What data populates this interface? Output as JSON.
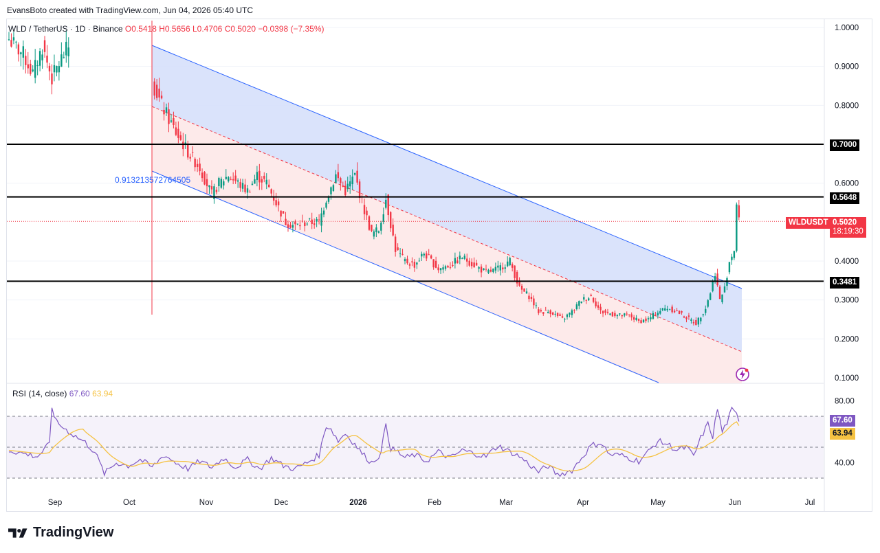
{
  "attribution": "EvansBoto created with TradingView.com, Jun 04, 2026 05:40 UTC",
  "legend": {
    "symbol": "WLD / TetherUS · 1D · Binance",
    "open": "O0.5418",
    "high": "H0.5656",
    "low": "L0.4706",
    "close": "C0.5020",
    "change": "−0.0398 (−7.35%)"
  },
  "fib_label": "0.913213572764505",
  "rsi": {
    "title": "RSI (14, close)",
    "value": "67.60",
    "ma_value": "63.94",
    "levels": {
      "upper": 70,
      "middle": 50,
      "lower": 30
    },
    "ticks": [
      "80.00",
      "40.00"
    ]
  },
  "price_tags": {
    "symbol_tag": "WLDUSDT",
    "last_price": "0.5020",
    "countdown": "18:19:30",
    "levels": [
      "0.7000",
      "0.5648",
      "0.3481"
    ]
  },
  "footer": {
    "brand": "TradingView"
  },
  "colors": {
    "up": "#089981",
    "down": "#f23645",
    "channel_line": "#2962ff",
    "channel_upper_fill": "#d6e0fb",
    "channel_lower_fill": "#fde8e8",
    "rsi_line": "#7e57c2",
    "rsi_ma": "#f5c242"
  },
  "chart_data": {
    "type": "candlestick",
    "symbol": "WLDUSDT",
    "timeframe": "1D",
    "x_ticks": [
      "Sep",
      "Oct",
      "Nov",
      "Dec",
      "2026",
      "Feb",
      "Mar",
      "Apr",
      "May",
      "Jun",
      "Jul"
    ],
    "y_ticks": [
      "1.0000",
      "0.9000",
      "0.8000",
      "0.6000",
      "0.4000",
      "0.3000",
      "0.2000",
      "0.1000"
    ],
    "horizontal_levels": [
      0.7,
      0.5648,
      0.3481
    ],
    "last_price": 0.502,
    "anchors_close": [
      [
        0,
        0.97
      ],
      [
        6,
        0.93
      ],
      [
        10,
        0.88
      ],
      [
        14,
        0.95
      ],
      [
        18,
        0.87
      ],
      [
        22,
        0.92
      ],
      [
        26,
        0.96
      ],
      [
        35,
        0.97
      ],
      [
        40,
        0.9
      ],
      [
        45,
        0.86
      ],
      [
        50,
        0.91
      ],
      [
        55,
        0.83
      ],
      [
        60,
        0.86
      ],
      [
        64,
        0.8
      ],
      [
        70,
        0.73
      ],
      [
        75,
        0.68
      ],
      [
        80,
        0.64
      ],
      [
        85,
        0.57
      ],
      [
        88,
        0.6
      ],
      [
        92,
        0.62
      ],
      [
        96,
        0.6
      ],
      [
        100,
        0.58
      ],
      [
        104,
        0.62
      ],
      [
        108,
        0.6
      ],
      [
        112,
        0.55
      ],
      [
        116,
        0.5
      ],
      [
        120,
        0.49
      ],
      [
        125,
        0.5
      ],
      [
        130,
        0.5
      ],
      [
        133,
        0.56
      ],
      [
        137,
        0.62
      ],
      [
        141,
        0.58
      ],
      [
        145,
        0.62
      ],
      [
        149,
        0.53
      ],
      [
        152,
        0.47
      ],
      [
        155,
        0.48
      ],
      [
        158,
        0.56
      ],
      [
        162,
        0.43
      ],
      [
        166,
        0.4
      ],
      [
        170,
        0.39
      ],
      [
        174,
        0.42
      ],
      [
        180,
        0.38
      ],
      [
        185,
        0.39
      ],
      [
        190,
        0.41
      ],
      [
        195,
        0.39
      ],
      [
        200,
        0.37
      ],
      [
        205,
        0.38
      ],
      [
        210,
        0.4
      ],
      [
        214,
        0.33
      ],
      [
        218,
        0.31
      ],
      [
        222,
        0.27
      ],
      [
        227,
        0.27
      ],
      [
        232,
        0.25
      ],
      [
        236,
        0.27
      ],
      [
        240,
        0.3
      ],
      [
        244,
        0.31
      ],
      [
        248,
        0.27
      ],
      [
        252,
        0.265
      ],
      [
        256,
        0.26
      ],
      [
        260,
        0.26
      ],
      [
        264,
        0.245
      ],
      [
        268,
        0.25
      ],
      [
        272,
        0.27
      ],
      [
        276,
        0.28
      ],
      [
        280,
        0.27
      ],
      [
        284,
        0.255
      ],
      [
        288,
        0.24
      ],
      [
        292,
        0.28
      ],
      [
        294,
        0.32
      ],
      [
        296,
        0.37
      ],
      [
        298,
        0.3
      ],
      [
        300,
        0.33
      ],
      [
        302,
        0.4
      ],
      [
        304,
        0.43
      ],
      [
        305,
        0.545
      ],
      [
        306,
        0.502
      ]
    ],
    "rsi_anchors": [
      [
        0,
        48
      ],
      [
        6,
        46
      ],
      [
        12,
        44
      ],
      [
        17,
        52
      ],
      [
        18,
        76
      ],
      [
        20,
        66
      ],
      [
        26,
        59
      ],
      [
        32,
        53
      ],
      [
        36,
        47
      ],
      [
        38,
        40
      ],
      [
        40,
        33
      ],
      [
        45,
        40
      ],
      [
        50,
        38
      ],
      [
        55,
        42
      ],
      [
        60,
        37
      ],
      [
        65,
        45
      ],
      [
        70,
        40
      ],
      [
        75,
        36
      ],
      [
        80,
        41
      ],
      [
        85,
        37
      ],
      [
        90,
        43
      ],
      [
        95,
        37
      ],
      [
        100,
        42
      ],
      [
        105,
        36
      ],
      [
        110,
        43
      ],
      [
        115,
        38
      ],
      [
        120,
        36
      ],
      [
        125,
        40
      ],
      [
        130,
        45
      ],
      [
        133,
        64
      ],
      [
        135,
        62
      ],
      [
        138,
        54
      ],
      [
        141,
        59
      ],
      [
        145,
        52
      ],
      [
        148,
        46
      ],
      [
        152,
        40
      ],
      [
        156,
        46
      ],
      [
        158,
        66
      ],
      [
        160,
        49
      ],
      [
        163,
        47
      ],
      [
        166,
        43
      ],
      [
        170,
        45
      ],
      [
        175,
        41
      ],
      [
        180,
        47
      ],
      [
        185,
        43
      ],
      [
        190,
        48
      ],
      [
        195,
        46
      ],
      [
        200,
        44
      ],
      [
        205,
        51
      ],
      [
        210,
        47
      ],
      [
        214,
        44
      ],
      [
        218,
        39
      ],
      [
        222,
        34
      ],
      [
        226,
        38
      ],
      [
        230,
        32
      ],
      [
        236,
        35
      ],
      [
        240,
        43
      ],
      [
        244,
        51
      ],
      [
        248,
        53
      ],
      [
        252,
        45
      ],
      [
        256,
        45
      ],
      [
        260,
        43
      ],
      [
        264,
        41
      ],
      [
        268,
        47
      ],
      [
        272,
        54
      ],
      [
        276,
        52
      ],
      [
        280,
        48
      ],
      [
        284,
        50
      ],
      [
        287,
        44
      ],
      [
        290,
        56
      ],
      [
        293,
        65
      ],
      [
        295,
        57
      ],
      [
        297,
        75
      ],
      [
        299,
        60
      ],
      [
        301,
        66
      ],
      [
        303,
        74
      ],
      [
        305,
        71
      ],
      [
        306,
        67.6
      ]
    ],
    "rsi_ma_end": 63.94
  }
}
